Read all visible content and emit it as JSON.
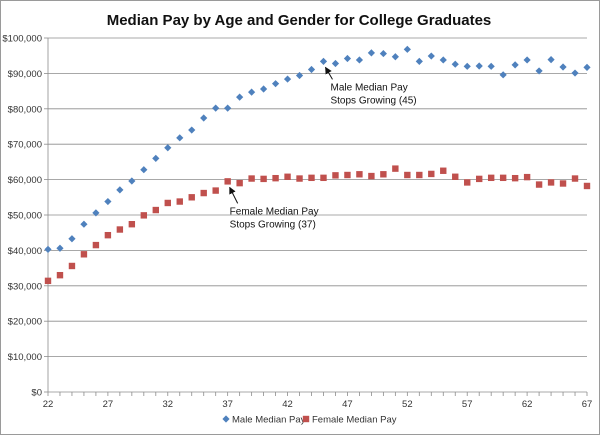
{
  "chart_data": {
    "type": "scatter",
    "title": "Median Pay by Age and Gender for College Graduates",
    "xlabel": "",
    "ylabel": "",
    "xlim": [
      22,
      67
    ],
    "ylim": [
      0,
      100000
    ],
    "x_ticks": [
      "22",
      "27",
      "32",
      "37",
      "42",
      "47",
      "52",
      "57",
      "62",
      "67"
    ],
    "y_ticks": [
      "$0",
      "$10,000",
      "$20,000",
      "$30,000",
      "$40,000",
      "$50,000",
      "$60,000",
      "$70,000",
      "$80,000",
      "$90,000",
      "$100,000"
    ],
    "grid": "horizontal",
    "legend_position": "bottom",
    "x": [
      22,
      23,
      24,
      25,
      26,
      27,
      28,
      29,
      30,
      31,
      32,
      33,
      34,
      35,
      36,
      37,
      38,
      39,
      40,
      41,
      42,
      43,
      44,
      45,
      46,
      47,
      48,
      49,
      50,
      51,
      52,
      53,
      54,
      55,
      56,
      57,
      58,
      59,
      60,
      61,
      62,
      63,
      64,
      65,
      66,
      67
    ],
    "series": [
      {
        "name": "Male Median Pay",
        "color": "#4f81bd",
        "marker": "diamond",
        "values": [
          40300,
          40600,
          43300,
          47400,
          50600,
          53800,
          57100,
          59600,
          62800,
          66000,
          69000,
          71800,
          74000,
          77400,
          80200,
          80200,
          83300,
          84700,
          85600,
          87100,
          88400,
          89400,
          91100,
          93400,
          92800,
          94200,
          93800,
          95800,
          95600,
          94700,
          96800,
          93400,
          94900,
          93800,
          92600,
          92000,
          92100,
          92000,
          89600,
          92400,
          93800,
          90700,
          93900,
          91800,
          90100,
          91700
        ]
      },
      {
        "name": "Female Median Pay",
        "color": "#c0504d",
        "marker": "square",
        "values": [
          31400,
          33000,
          35600,
          38900,
          41500,
          44300,
          45900,
          47400,
          49900,
          51400,
          53400,
          53800,
          55000,
          56200,
          56900,
          59500,
          59000,
          60300,
          60200,
          60400,
          60800,
          60300,
          60500,
          60500,
          61200,
          61300,
          61500,
          61000,
          61500,
          63100,
          61300,
          61300,
          61600,
          62500,
          60800,
          59200,
          60200,
          60500,
          60500,
          60400,
          60700,
          58600,
          59200,
          58900,
          60300,
          58200
        ]
      }
    ],
    "annotations": [
      {
        "lines": [
          "Male Median Pay",
          "Stops Growing (45)"
        ],
        "target_x": 45,
        "series": 0
      },
      {
        "lines": [
          "Female Median Pay",
          "Stops Growing (37)"
        ],
        "target_x": 37,
        "series": 1
      }
    ]
  }
}
